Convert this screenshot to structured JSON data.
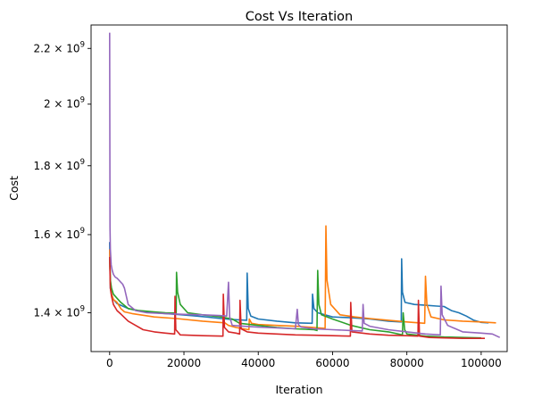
{
  "chart_data": {
    "type": "line",
    "title": "Cost Vs Iteration",
    "xlabel": "Iteration",
    "ylabel": "Cost",
    "y_scale": "log",
    "xlim": [
      -5000,
      107000
    ],
    "ylim": [
      1310000000,
      2290000000
    ],
    "x_ticks": [
      0,
      20000,
      40000,
      60000,
      80000,
      100000
    ],
    "x_tick_labels": [
      "0",
      "20000",
      "40000",
      "60000",
      "80000",
      "100000"
    ],
    "y_ticks": [
      1400000000,
      1600000000,
      1800000000,
      2000000000,
      2200000000
    ],
    "y_tick_labels": [
      {
        "mant": "1.4",
        "exp": "9"
      },
      {
        "mant": "1.6",
        "exp": "9"
      },
      {
        "mant": "1.8",
        "exp": "9"
      },
      {
        "mant": "2",
        "exp": "9"
      },
      {
        "mant": "2.2",
        "exp": "9"
      }
    ],
    "series": [
      {
        "color": "#1f77b4",
        "x": [
          0,
          200,
          500,
          1000,
          2000,
          3000,
          5000,
          8000,
          12000,
          15000,
          18000,
          22000,
          26000,
          30000,
          33000,
          35000,
          36900,
          37000,
          37300,
          38000,
          40000,
          45000,
          50000,
          54500,
          54600,
          55000,
          56000,
          60000,
          65000,
          70000,
          75000,
          78500,
          78600,
          78800,
          79500,
          82000,
          85000,
          88000,
          90000,
          92000,
          94000,
          96000,
          98000,
          100000,
          102000
        ],
        "y": [
          1580000000,
          1460000000,
          1445000000,
          1432000000,
          1422000000,
          1418000000,
          1410000000,
          1404000000,
          1400000000,
          1398000000,
          1396000000,
          1393000000,
          1390000000,
          1386000000,
          1384000000,
          1383000000,
          1382000000,
          1498000000,
          1410000000,
          1392000000,
          1385000000,
          1380000000,
          1376000000,
          1375000000,
          1445000000,
          1410000000,
          1400000000,
          1390000000,
          1388000000,
          1385000000,
          1380000000,
          1378000000,
          1535000000,
          1450000000,
          1425000000,
          1420000000,
          1418000000,
          1416000000,
          1415000000,
          1405000000,
          1400000000,
          1392000000,
          1382000000,
          1377000000,
          1376000000
        ]
      },
      {
        "color": "#ff7f0e",
        "x": [
          0,
          200,
          500,
          1000,
          2000,
          3000,
          4000,
          6000,
          9000,
          12000,
          18000,
          25000,
          31000,
          32000,
          34000,
          36000,
          37500,
          37600,
          38200,
          40000,
          45000,
          50000,
          55000,
          58000,
          58200,
          58500,
          59500,
          62000,
          66000,
          70000,
          75000,
          80000,
          84800,
          85000,
          85400,
          86500,
          90000,
          95000,
          100000,
          104000
        ],
        "y": [
          1560000000,
          1470000000,
          1445000000,
          1432000000,
          1425000000,
          1410000000,
          1402000000,
          1398000000,
          1394000000,
          1390000000,
          1386000000,
          1380000000,
          1376000000,
          1370000000,
          1365000000,
          1362000000,
          1360000000,
          1385000000,
          1375000000,
          1372000000,
          1370000000,
          1368000000,
          1365000000,
          1363000000,
          1624000000,
          1480000000,
          1420000000,
          1395000000,
          1390000000,
          1386000000,
          1382000000,
          1378000000,
          1375000000,
          1490000000,
          1420000000,
          1390000000,
          1383000000,
          1380000000,
          1378000000,
          1376000000
        ]
      },
      {
        "color": "#2ca02c",
        "x": [
          0,
          200,
          500,
          1000,
          2000,
          3000,
          5000,
          8000,
          12000,
          15000,
          17900,
          18000,
          18300,
          19000,
          21000,
          25000,
          30000,
          33000,
          35000,
          40000,
          45000,
          50000,
          55000,
          55800,
          56000,
          56300,
          57000,
          60000,
          65000,
          70000,
          75000,
          78800,
          79000,
          79400,
          80000,
          85000,
          90000,
          95000,
          100000
        ],
        "y": [
          1540000000,
          1480000000,
          1460000000,
          1445000000,
          1435000000,
          1425000000,
          1410000000,
          1405000000,
          1402000000,
          1400000000,
          1399000000,
          1500000000,
          1450000000,
          1420000000,
          1400000000,
          1395000000,
          1390000000,
          1385000000,
          1375000000,
          1370000000,
          1365000000,
          1362000000,
          1360000000,
          1358000000,
          1505000000,
          1420000000,
          1395000000,
          1385000000,
          1370000000,
          1360000000,
          1355000000,
          1348000000,
          1400000000,
          1360000000,
          1350000000,
          1345000000,
          1343000000,
          1342000000,
          1341000000
        ]
      },
      {
        "color": "#d62728",
        "x": [
          0,
          200,
          500,
          1000,
          2000,
          3000,
          5000,
          7000,
          9000,
          12000,
          15000,
          17500,
          17600,
          17800,
          19000,
          25000,
          30500,
          30600,
          30900,
          32000,
          34000,
          35000,
          35100,
          35400,
          37000,
          40000,
          45000,
          50000,
          55000,
          60000,
          64800,
          64900,
          65200,
          70000,
          75000,
          80000,
          83000,
          83100,
          83400,
          86000,
          90000,
          95000,
          101000
        ],
        "y": [
          1540000000,
          1460000000,
          1440000000,
          1420000000,
          1405000000,
          1397000000,
          1380000000,
          1370000000,
          1360000000,
          1355000000,
          1352000000,
          1350000000,
          1440000000,
          1360000000,
          1348000000,
          1346000000,
          1345000000,
          1445000000,
          1365000000,
          1355000000,
          1352000000,
          1350000000,
          1430000000,
          1362000000,
          1355000000,
          1352000000,
          1350000000,
          1348000000,
          1347000000,
          1346000000,
          1345000000,
          1425000000,
          1355000000,
          1350000000,
          1347000000,
          1346000000,
          1345000000,
          1430000000,
          1345000000,
          1342000000,
          1341000000,
          1340000000,
          1340000000
        ]
      },
      {
        "color": "#9467bd",
        "x": [
          0,
          100,
          200,
          400,
          700,
          1000,
          1500,
          2000,
          2500,
          3000,
          3500,
          4000,
          5000,
          7000,
          10000,
          15000,
          20000,
          25000,
          30000,
          31500,
          32000,
          32300,
          33000,
          36000,
          40000,
          45000,
          50000,
          50500,
          50800,
          51500,
          55000,
          60000,
          65000,
          68000,
          68200,
          68500,
          70000,
          75000,
          80000,
          85000,
          89000,
          89200,
          89500,
          91000,
          95000,
          100000,
          103000,
          105000
        ],
        "y": [
          2260000000,
          1620000000,
          1560000000,
          1520000000,
          1505000000,
          1495000000,
          1488000000,
          1485000000,
          1480000000,
          1475000000,
          1470000000,
          1460000000,
          1420000000,
          1405000000,
          1400000000,
          1398000000,
          1396000000,
          1395000000,
          1393000000,
          1392000000,
          1475000000,
          1390000000,
          1370000000,
          1368000000,
          1366000000,
          1364000000,
          1362000000,
          1408000000,
          1372000000,
          1366000000,
          1362000000,
          1360000000,
          1358000000,
          1357000000,
          1420000000,
          1375000000,
          1368000000,
          1360000000,
          1355000000,
          1350000000,
          1348000000,
          1465000000,
          1395000000,
          1370000000,
          1355000000,
          1352000000,
          1350000000,
          1342000000
        ]
      }
    ]
  }
}
